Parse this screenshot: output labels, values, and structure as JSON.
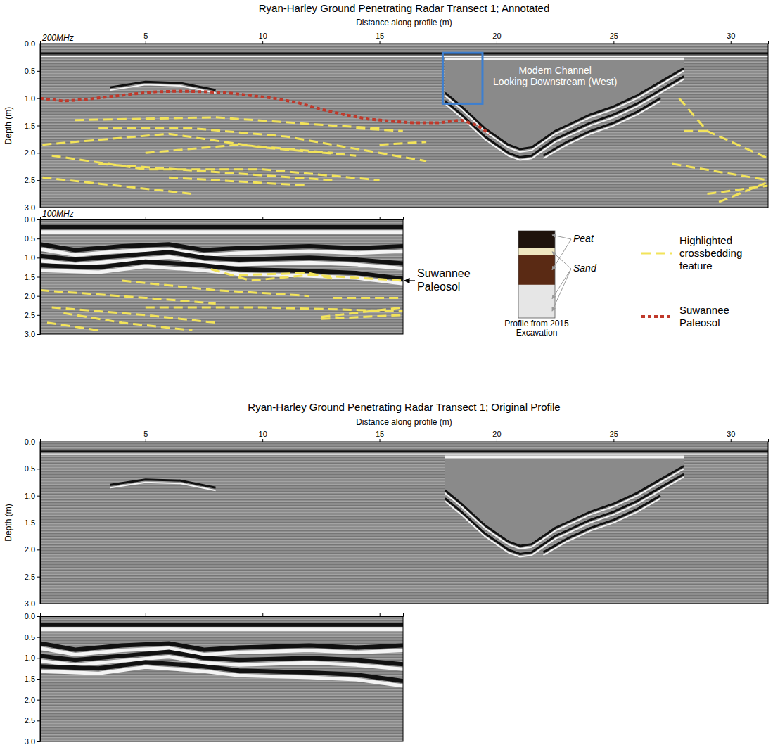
{
  "chart_data": [
    {
      "type": "radargram",
      "title": "Ryan-Harley Ground Penetrating Radar Transect 1; Annotated",
      "subtitle": "200MHz",
      "x_label": "Distance along profile (m)",
      "y_label": "Depth (m)",
      "xlim": [
        0.5,
        31.6
      ],
      "ylim": [
        0,
        3
      ],
      "xticks": [
        5,
        10,
        15,
        20,
        25,
        30
      ],
      "yticks": [
        {
          "value": 0,
          "label": "0.0"
        },
        0.5,
        {
          "value": 1,
          "label": "1.0"
        },
        1.5,
        {
          "value": 2,
          "label": "2.0"
        },
        2.5,
        {
          "value": 3,
          "label": "3.0"
        }
      ],
      "legend": "right",
      "channel": {
        "x": [
          17.8,
          17.8,
          18.5,
          19,
          19.5,
          20,
          20.5,
          21,
          21.5,
          22,
          22.5,
          23,
          24,
          25,
          26,
          27,
          28,
          28
        ],
        "values": [
          0.28,
          0.9,
          1.15,
          1.35,
          1.55,
          1.7,
          1.85,
          1.93,
          1.9,
          1.75,
          1.6,
          1.5,
          1.3,
          1.15,
          0.95,
          0.7,
          0.45,
          0.28
        ]
      },
      "reflectors": [
        {
          "x": [
            0.5,
            31.6
          ],
          "values": [
            0.18,
            0.18
          ]
        },
        {
          "x": [
            3.5,
            5,
            6.5,
            8
          ],
          "values": [
            0.8,
            0.7,
            0.72,
            0.85
          ]
        },
        {
          "x": [
            17.8,
            18.5,
            19,
            19.5,
            20,
            20.5,
            21,
            21.5,
            22,
            22.5,
            23,
            24,
            25,
            26,
            27,
            28
          ],
          "values": [
            0.9,
            1.15,
            1.35,
            1.55,
            1.7,
            1.85,
            1.93,
            1.9,
            1.75,
            1.6,
            1.5,
            1.3,
            1.15,
            0.95,
            0.7,
            0.45
          ]
        },
        {
          "x": [
            17.8,
            18.5,
            19,
            19.5,
            20,
            20.5,
            21,
            21.5,
            22,
            22.5,
            23,
            24,
            25,
            26,
            27,
            28
          ],
          "values": [
            1.05,
            1.3,
            1.5,
            1.7,
            1.85,
            2.0,
            2.08,
            2.05,
            1.9,
            1.75,
            1.65,
            1.45,
            1.3,
            1.1,
            0.85,
            0.6
          ]
        },
        {
          "x": [
            22,
            23,
            24,
            25,
            26,
            27
          ],
          "values": [
            2.05,
            1.8,
            1.6,
            1.45,
            1.25,
            1.0
          ]
        }
      ],
      "series": [
        {
          "name": "Highlighted crossbedding feature",
          "color": "#f2e35a",
          "line_style": "dashed",
          "x": [
            2,
            8,
            13,
            15,
            null,
            0.6,
            6,
            10,
            14,
            null,
            3,
            7,
            11,
            15,
            17,
            null,
            5,
            9,
            13,
            null,
            1,
            5,
            10,
            15,
            null,
            3,
            8,
            13,
            null,
            6,
            10,
            12,
            null,
            0.6,
            7,
            null,
            14,
            16,
            null,
            15,
            17,
            null,
            27.8,
            29,
            31.6,
            null,
            28,
            29,
            null,
            27.5,
            31.6,
            null,
            29,
            31.6,
            null,
            29.5,
            31.5
          ],
          "values": [
            1.4,
            1.35,
            1.5,
            1.55,
            null,
            1.85,
            1.65,
            1.9,
            2.05,
            null,
            1.55,
            1.55,
            1.7,
            2.0,
            2.15,
            null,
            2.0,
            1.85,
            2.0,
            null,
            2.05,
            2.3,
            2.3,
            2.5,
            null,
            2.2,
            2.35,
            2.5,
            null,
            2.45,
            2.55,
            2.6,
            null,
            2.45,
            2.75,
            null,
            1.55,
            1.6,
            null,
            1.85,
            1.8,
            null,
            1.0,
            1.6,
            2.1,
            null,
            1.6,
            1.6,
            null,
            2.2,
            2.5,
            null,
            2.75,
            2.6,
            null,
            2.9,
            2.55
          ]
        },
        {
          "name": "Suwannee Paleosol",
          "color": "#c0392b",
          "line_style": "dotted",
          "x": [
            0.5,
            1.5,
            2.5,
            3.5,
            4.5,
            5.5,
            6.5,
            7.5,
            8.5,
            9.5,
            10.5,
            11.5,
            12.5,
            13.5,
            14.5,
            15.5,
            16.5,
            17.5,
            18.5,
            19.2,
            19.7
          ],
          "values": [
            1.0,
            1.05,
            1.02,
            0.97,
            0.92,
            0.88,
            0.87,
            0.88,
            0.9,
            0.95,
            1.0,
            1.08,
            1.2,
            1.3,
            1.38,
            1.42,
            1.45,
            1.45,
            1.4,
            1.5,
            1.65
          ]
        }
      ],
      "box": {
        "x": [
          17.7,
          19.4
        ],
        "values": [
          0.17,
          1.1
        ],
        "color": "#3d7fd0"
      },
      "annotations": [
        {
          "text": "Modern Channel",
          "x": 22.5,
          "y": 0.55
        },
        {
          "text": "Looking Downstream (West)",
          "x": 22.5,
          "y": 0.76
        }
      ]
    },
    {
      "type": "radargram",
      "subtitle": "100MHz",
      "xlim": [
        0.5,
        16.0
      ],
      "ylim": [
        0,
        3
      ],
      "xticks": [
        5,
        10,
        15
      ],
      "yticks": [
        {
          "value": 0,
          "label": "0.0"
        },
        0.5,
        {
          "value": 1,
          "label": "1.0"
        },
        1.5,
        {
          "value": 2,
          "label": "2.0"
        },
        2.5,
        {
          "value": 3,
          "label": "3.0"
        }
      ],
      "tick_labels": "y",
      "reflectors": [
        {
          "x": [
            0.5,
            16
          ],
          "values": [
            0.2,
            0.2
          ]
        },
        {
          "x": [
            0.5,
            2,
            4,
            6,
            7.5,
            9,
            12,
            14,
            16
          ],
          "values": [
            0.65,
            0.8,
            0.7,
            0.65,
            0.8,
            0.75,
            0.7,
            0.75,
            0.7
          ]
        },
        {
          "x": [
            0.5,
            2,
            4,
            6,
            7.5,
            9,
            12,
            14,
            16
          ],
          "values": [
            0.95,
            1.05,
            0.95,
            0.85,
            1.0,
            1.05,
            1.0,
            1.05,
            1.15
          ]
        },
        {
          "x": [
            0.5,
            3,
            5,
            7.5,
            9,
            12,
            14,
            16
          ],
          "values": [
            1.2,
            1.25,
            1.1,
            1.2,
            1.3,
            1.35,
            1.4,
            1.55
          ]
        }
      ],
      "series": [
        {
          "color": "#f2e35a",
          "line_style": "dashed",
          "x": [
            7.8,
            9.5,
            12,
            16,
            null,
            9,
            12,
            13,
            null,
            4,
            8,
            12,
            null,
            0.5,
            5,
            8,
            null,
            1,
            5,
            8,
            null,
            1.5,
            4,
            7,
            null,
            5,
            10,
            16,
            null,
            12.5,
            16,
            null,
            12.5,
            16,
            null,
            13,
            16,
            null,
            0.8,
            3
          ],
          "values": [
            1.3,
            1.6,
            1.45,
            1.6,
            null,
            1.45,
            1.4,
            1.55,
            null,
            1.6,
            1.85,
            2.0,
            null,
            1.85,
            2.05,
            2.2,
            null,
            2.3,
            2.5,
            2.7,
            null,
            2.45,
            2.7,
            2.9,
            null,
            2.3,
            2.3,
            2.4,
            null,
            2.55,
            2.3,
            null,
            2.6,
            2.5,
            null,
            2.05,
            2.05,
            null,
            2.7,
            2.9
          ]
        }
      ],
      "annotations": [
        {
          "text": "Suwannee Paleosol",
          "x": 16.0,
          "y": 1.6
        }
      ]
    },
    {
      "type": "radargram",
      "title": "Ryan-Harley Ground Penetrating Radar Transect 1; Original Profile",
      "x_label": "Distance along profile (m)",
      "y_label": "Depth (m)",
      "xlim": [
        0.5,
        31.6
      ],
      "ylim": [
        0,
        3
      ],
      "xticks": [
        5,
        10,
        15,
        20,
        25,
        30
      ],
      "yticks": [
        {
          "value": 0,
          "label": "0.0"
        },
        0.5,
        {
          "value": 1,
          "label": "1.0"
        },
        1.5,
        {
          "value": 2,
          "label": "2.0"
        },
        2.5,
        {
          "value": 3,
          "label": "3.0"
        }
      ],
      "channel": {
        "x": [
          17.8,
          17.8,
          18.5,
          19,
          19.5,
          20,
          20.5,
          21,
          21.5,
          22,
          22.5,
          23,
          24,
          25,
          26,
          27,
          28,
          28
        ],
        "values": [
          0.28,
          0.9,
          1.15,
          1.35,
          1.55,
          1.7,
          1.85,
          1.93,
          1.9,
          1.75,
          1.6,
          1.5,
          1.3,
          1.15,
          0.95,
          0.7,
          0.45,
          0.28
        ]
      },
      "reflectors": [
        {
          "x": [
            0.5,
            31.6
          ],
          "values": [
            0.18,
            0.18
          ]
        },
        {
          "x": [
            3.5,
            5,
            6.5,
            8
          ],
          "values": [
            0.8,
            0.7,
            0.72,
            0.85
          ]
        },
        {
          "x": [
            17.8,
            18.5,
            19,
            19.5,
            20,
            20.5,
            21,
            21.5,
            22,
            22.5,
            23,
            24,
            25,
            26,
            27,
            28
          ],
          "values": [
            0.9,
            1.15,
            1.35,
            1.55,
            1.7,
            1.85,
            1.93,
            1.9,
            1.75,
            1.6,
            1.5,
            1.3,
            1.15,
            0.95,
            0.7,
            0.45
          ]
        },
        {
          "x": [
            17.8,
            18.5,
            19,
            19.5,
            20,
            20.5,
            21,
            21.5,
            22,
            22.5,
            23,
            24,
            25,
            26,
            27,
            28
          ],
          "values": [
            1.05,
            1.3,
            1.5,
            1.7,
            1.85,
            2.0,
            2.08,
            2.05,
            1.9,
            1.75,
            1.65,
            1.45,
            1.3,
            1.1,
            0.85,
            0.6
          ]
        },
        {
          "x": [
            22,
            23,
            24,
            25,
            26,
            27
          ],
          "values": [
            2.05,
            1.8,
            1.6,
            1.45,
            1.25,
            1.0
          ]
        }
      ]
    },
    {
      "type": "radargram",
      "xlim": [
        0.5,
        16.0
      ],
      "ylim": [
        0,
        3
      ],
      "xticks": [
        5,
        10,
        15
      ],
      "yticks": [
        {
          "value": 0,
          "label": "0.0"
        },
        0.5,
        {
          "value": 1,
          "label": "1.0"
        },
        1.5,
        {
          "value": 2,
          "label": "2.0"
        },
        2.5,
        {
          "value": 3,
          "label": "3.0"
        }
      ],
      "tick_labels": "y",
      "reflectors": [
        {
          "x": [
            0.5,
            16
          ],
          "values": [
            0.2,
            0.2
          ]
        },
        {
          "x": [
            0.5,
            2,
            4,
            6,
            7.5,
            9,
            12,
            14,
            16
          ],
          "values": [
            0.65,
            0.8,
            0.7,
            0.65,
            0.8,
            0.75,
            0.7,
            0.75,
            0.7
          ]
        },
        {
          "x": [
            0.5,
            2,
            4,
            6,
            7.5,
            9,
            12,
            14,
            16
          ],
          "values": [
            0.95,
            1.05,
            0.95,
            0.85,
            1.0,
            1.05,
            1.0,
            1.05,
            1.15
          ]
        },
        {
          "x": [
            0.5,
            3,
            5,
            7.5,
            9,
            12,
            14,
            16
          ],
          "values": [
            1.2,
            1.25,
            1.1,
            1.2,
            1.3,
            1.35,
            1.4,
            1.55
          ]
        }
      ]
    }
  ],
  "profile_inset": {
    "labels": [
      "Peat",
      "Sand"
    ],
    "caption": "Profile from 2015 Excavation",
    "layer_colors": [
      "#1f130c",
      "#efe6c0",
      "#5a2a14",
      "#e6e6e6"
    ]
  }
}
